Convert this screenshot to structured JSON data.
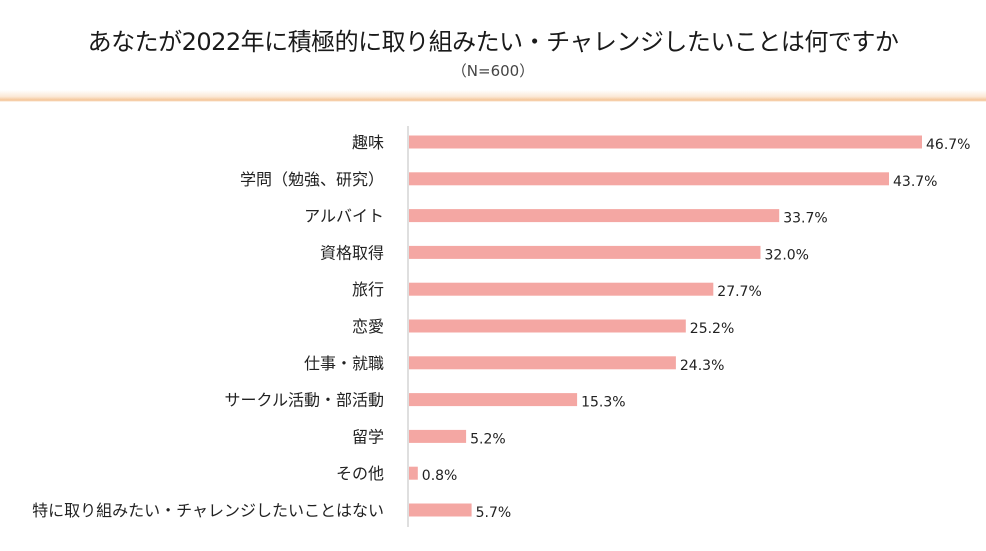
{
  "chart_data": {
    "type": "bar",
    "orientation": "horizontal",
    "title": "あなたが2022年に積極的に取り組みたい・チャレンジしたいことは何ですか",
    "subtitle": "（N=600）",
    "categories": [
      "趣味",
      "学問（勉強、研究）",
      "アルバイト",
      "資格取得",
      "旅行",
      "恋愛",
      "仕事・就職",
      "サークル活動・部活動",
      "留学",
      "その他",
      "特に取り組みたい・チャレンジしたいことはない"
    ],
    "values": [
      46.7,
      43.7,
      33.7,
      32.0,
      27.7,
      25.2,
      24.3,
      15.3,
      5.2,
      0.8,
      5.7
    ],
    "value_labels": [
      "46.7%",
      "43.7%",
      "33.7%",
      "32.0%",
      "27.7%",
      "25.2%",
      "24.3%",
      "15.3%",
      "5.2%",
      "0.8%",
      "5.7%"
    ],
    "unit": "%",
    "xlim": [
      0,
      46.7
    ],
    "grid": false,
    "legend": "none",
    "bar_color": "#f4a7a3"
  }
}
